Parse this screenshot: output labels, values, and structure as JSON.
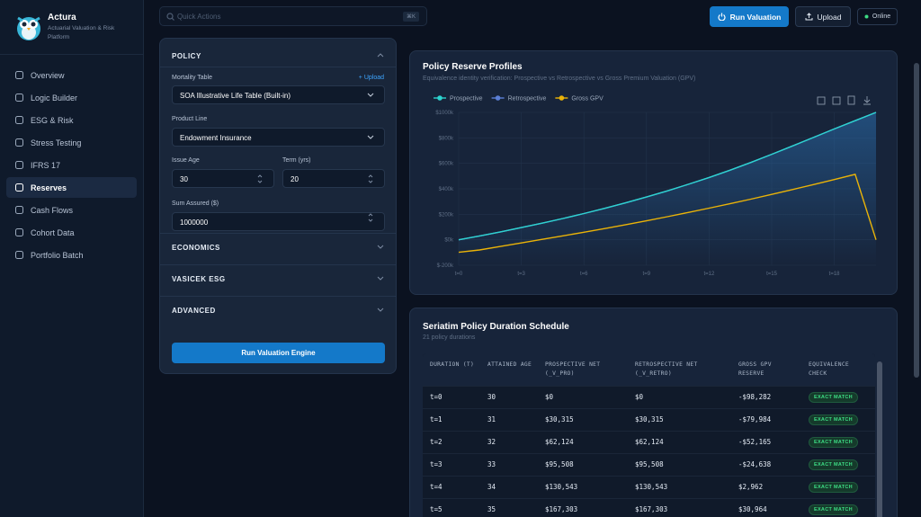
{
  "sidebar": {
    "brand": "Actura",
    "tagline": "Actuarial Valuation & Risk Platform",
    "nav": [
      "Overview",
      "Logic Builder",
      "ESG & Risk",
      "Stress Testing",
      "IFRS 17",
      "Reserves",
      "Cash Flows",
      "Cohort Data",
      "Portfolio Batch"
    ]
  },
  "topbar": {
    "search_placeholder": "Quick Actions",
    "shortcut": "⌘K",
    "run_button": "Run Valuation",
    "upload_button": "Upload",
    "status": "Online"
  },
  "form": {
    "section": "POLICY",
    "mortality_label": "Mortality Table",
    "upload_link": "+ Upload",
    "mortality_value": "SOA Illustrative Life Table (Built-in)",
    "product_label": "Product Line",
    "product_value": "Endowment Insurance",
    "issue_age_label": "Issue Age",
    "issue_age_value": "30",
    "term_label": "Term (yrs)",
    "term_value": "20",
    "sum_label": "Sum Assured ($)",
    "sum_value": "1000000",
    "collapsed_sections": [
      "ECONOMICS",
      "VASICEK ESG",
      "ADVANCED"
    ],
    "submit": "Run Valuation Engine"
  },
  "chart_data": {
    "type": "line",
    "title": "Policy Reserve Profiles",
    "subtitle": "Equivalence identity verification: Prospective vs Retrospective vs Gross Premium Valuation (GPV)",
    "categories": [
      "t=0",
      null,
      null,
      "t=3",
      null,
      null,
      "t=6",
      null,
      null,
      "t=9",
      null,
      null,
      "t=12",
      null,
      null,
      "t=15",
      null,
      null,
      "t=18",
      null,
      null
    ],
    "series": [
      {
        "name": "Retrospective",
        "color": "#5b7fd6",
        "values": [
          0,
          30315,
          62124,
          95508,
          130543,
          167303,
          206000,
          247000,
          290000,
          336000,
          384000,
          435000,
          489000,
          546000,
          607000,
          671000,
          737000,
          803000,
          870000,
          935000,
          1000000
        ]
      },
      {
        "name": "Prospective",
        "color": "#2dd4cf",
        "values": [
          0,
          30315,
          62124,
          95508,
          130543,
          167303,
          206000,
          247000,
          290000,
          336000,
          384000,
          435000,
          489000,
          546000,
          607000,
          671000,
          737000,
          803000,
          870000,
          935000,
          1000000
        ]
      },
      {
        "name": "Gross GPV",
        "color": "#eab308",
        "values": [
          -98282,
          -79984,
          -52165,
          -24638,
          2962,
          30964,
          59000,
          88000,
          118000,
          149000,
          181000,
          214000,
          248000,
          283000,
          319000,
          356000,
          394000,
          433000,
          473000,
          514000,
          0
        ]
      }
    ],
    "ylim": [
      -200000,
      1000000
    ],
    "yticks": [
      {
        "value": -200000,
        "label": "$-200k"
      },
      {
        "value": 0,
        "label": "$0k"
      },
      {
        "value": 200000,
        "label": "$200k"
      },
      {
        "value": 400000,
        "label": "$400k"
      },
      {
        "value": 600000,
        "label": "$600k"
      },
      {
        "value": 800000,
        "label": "$800k"
      },
      {
        "value": 1000000,
        "label": "$1000k"
      }
    ],
    "grid": true
  },
  "table": {
    "title": "Seriatim Policy Duration Schedule",
    "subtitle": "21 policy durations",
    "columns": [
      "DURATION (T)",
      "ATTAINED AGE",
      "PROSPECTIVE NET (_V_PRO)",
      "RETROSPECTIVE NET (_V_RETRO)",
      "GROSS GPV RESERVE",
      "EQUIVALENCE CHECK"
    ],
    "rows": [
      [
        "t=0",
        "30",
        "$0",
        "$0",
        "-$98,282",
        "EXACT MATCH"
      ],
      [
        "t=1",
        "31",
        "$30,315",
        "$30,315",
        "-$79,984",
        "EXACT MATCH"
      ],
      [
        "t=2",
        "32",
        "$62,124",
        "$62,124",
        "-$52,165",
        "EXACT MATCH"
      ],
      [
        "t=3",
        "33",
        "$95,508",
        "$95,508",
        "-$24,638",
        "EXACT MATCH"
      ],
      [
        "t=4",
        "34",
        "$130,543",
        "$130,543",
        "$2,962",
        "EXACT MATCH"
      ],
      [
        "t=5",
        "35",
        "$167,303",
        "$167,303",
        "$30,964",
        "EXACT MATCH"
      ]
    ]
  }
}
